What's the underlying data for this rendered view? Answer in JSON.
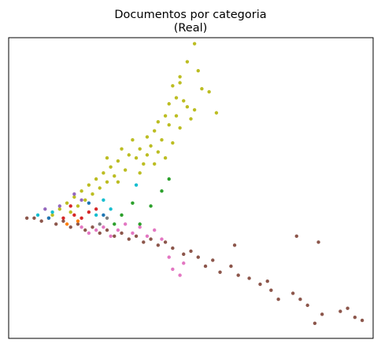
{
  "chart_data": {
    "type": "scatter",
    "title": "Documentos por categoria",
    "subtitle": "(Real)",
    "xlabel": "",
    "ylabel": "",
    "axis_ticks": "none",
    "grid": false,
    "legend": "none",
    "xlim": [
      0,
      100
    ],
    "ylim": [
      0,
      100
    ],
    "series_colors": {
      "olive": "#bcbd22",
      "brown": "#8c564b",
      "pink": "#e377c2",
      "green": "#2ca02c",
      "red": "#d62728",
      "cyan": "#17becf",
      "purple": "#9467bd",
      "blue": "#1f77b4",
      "orange": "#ff7f0e",
      "gray": "#7f7f7f"
    },
    "olive_hand_points": [
      [
        51,
        98
      ],
      [
        49,
        92
      ],
      [
        52,
        89
      ],
      [
        47,
        87
      ],
      [
        45,
        84
      ],
      [
        47,
        85
      ],
      [
        53,
        83
      ],
      [
        55,
        82
      ],
      [
        46,
        80
      ],
      [
        48,
        79
      ],
      [
        44,
        78
      ],
      [
        49,
        77
      ],
      [
        51,
        76
      ],
      [
        57,
        75
      ],
      [
        43,
        74
      ],
      [
        46,
        74
      ],
      [
        50,
        73
      ],
      [
        41,
        72
      ],
      [
        44,
        71
      ],
      [
        47,
        70
      ],
      [
        40,
        69
      ],
      [
        38,
        67
      ],
      [
        42,
        66
      ],
      [
        45,
        65
      ],
      [
        39,
        64
      ],
      [
        36,
        63
      ],
      [
        41,
        62
      ],
      [
        33,
        61
      ],
      [
        35,
        60
      ],
      [
        30,
        59
      ],
      [
        37,
        58
      ],
      [
        28,
        57
      ],
      [
        32,
        56
      ],
      [
        26,
        55
      ],
      [
        29,
        54
      ],
      [
        24,
        53
      ],
      [
        27,
        52
      ],
      [
        22,
        51
      ],
      [
        25,
        50
      ],
      [
        20,
        49
      ],
      [
        23,
        48
      ],
      [
        18,
        47
      ],
      [
        21,
        46
      ],
      [
        16,
        45
      ],
      [
        19,
        44
      ],
      [
        14,
        43
      ],
      [
        17,
        42
      ],
      [
        12,
        41
      ],
      [
        34,
        66
      ],
      [
        31,
        63
      ],
      [
        38,
        61
      ],
      [
        43,
        60
      ],
      [
        27,
        60
      ],
      [
        36,
        55
      ],
      [
        40,
        58
      ],
      [
        30,
        52
      ]
    ],
    "brown_hand_points": [
      [
        97,
        6
      ],
      [
        95,
        7
      ],
      [
        93,
        10
      ],
      [
        91,
        9
      ],
      [
        86,
        8
      ],
      [
        84,
        5
      ],
      [
        82,
        11
      ],
      [
        80,
        13
      ],
      [
        78,
        15
      ],
      [
        74,
        13
      ],
      [
        72,
        16
      ],
      [
        71,
        19
      ],
      [
        69,
        18
      ],
      [
        66,
        20
      ],
      [
        63,
        21
      ],
      [
        61,
        24
      ],
      [
        58,
        22
      ],
      [
        56,
        26
      ],
      [
        54,
        24
      ],
      [
        52,
        27
      ],
      [
        50,
        29
      ],
      [
        48,
        28
      ],
      [
        85,
        32
      ],
      [
        79,
        34
      ],
      [
        62,
        31
      ],
      [
        45,
        30
      ],
      [
        43,
        32
      ],
      [
        41,
        31
      ],
      [
        39,
        33
      ],
      [
        37,
        32
      ],
      [
        35,
        34
      ],
      [
        33,
        33
      ],
      [
        31,
        35
      ],
      [
        29,
        34
      ],
      [
        27,
        36
      ],
      [
        25,
        35
      ],
      [
        23,
        37
      ],
      [
        21,
        36
      ],
      [
        19,
        38
      ],
      [
        17,
        37
      ],
      [
        15,
        39
      ],
      [
        13,
        38
      ],
      [
        11,
        40
      ],
      [
        9,
        39
      ],
      [
        7,
        40
      ],
      [
        5,
        40
      ]
    ],
    "pink_hand_points": [
      [
        40,
        36
      ],
      [
        42,
        33
      ],
      [
        38,
        34
      ],
      [
        36,
        37
      ],
      [
        34,
        35
      ],
      [
        32,
        38
      ],
      [
        30,
        36
      ],
      [
        28,
        34
      ],
      [
        26,
        37
      ],
      [
        24,
        36
      ],
      [
        22,
        35
      ],
      [
        20,
        37
      ],
      [
        45,
        23
      ],
      [
        47,
        21
      ],
      [
        44,
        27
      ],
      [
        48,
        25
      ]
    ],
    "other_hand_points": [
      {
        "series": "green",
        "points": [
          [
            42,
            49
          ],
          [
            44,
            53
          ],
          [
            39,
            44
          ],
          [
            34,
            45
          ],
          [
            31,
            41
          ],
          [
            29,
            38
          ],
          [
            36,
            38
          ]
        ]
      },
      {
        "series": "red",
        "points": [
          [
            15,
            40
          ],
          [
            18,
            41
          ],
          [
            20,
            40
          ],
          [
            22,
            42
          ],
          [
            17,
            44
          ],
          [
            24,
            43
          ]
        ]
      },
      {
        "series": "cyan",
        "points": [
          [
            35,
            51
          ],
          [
            26,
            46
          ],
          [
            28,
            43
          ],
          [
            24,
            41
          ],
          [
            8,
            41
          ],
          [
            12,
            42
          ]
        ]
      },
      {
        "series": "purple",
        "points": [
          [
            18,
            48
          ],
          [
            20,
            46
          ],
          [
            10,
            43
          ],
          [
            14,
            44
          ]
        ]
      },
      {
        "series": "blue",
        "points": [
          [
            22,
            45
          ],
          [
            26,
            41
          ],
          [
            11,
            40
          ]
        ]
      },
      {
        "series": "orange",
        "points": [
          [
            19,
            39
          ],
          [
            16,
            38
          ]
        ]
      },
      {
        "series": "gray",
        "points": [
          [
            25,
            38
          ],
          [
            27,
            40
          ]
        ]
      }
    ]
  }
}
